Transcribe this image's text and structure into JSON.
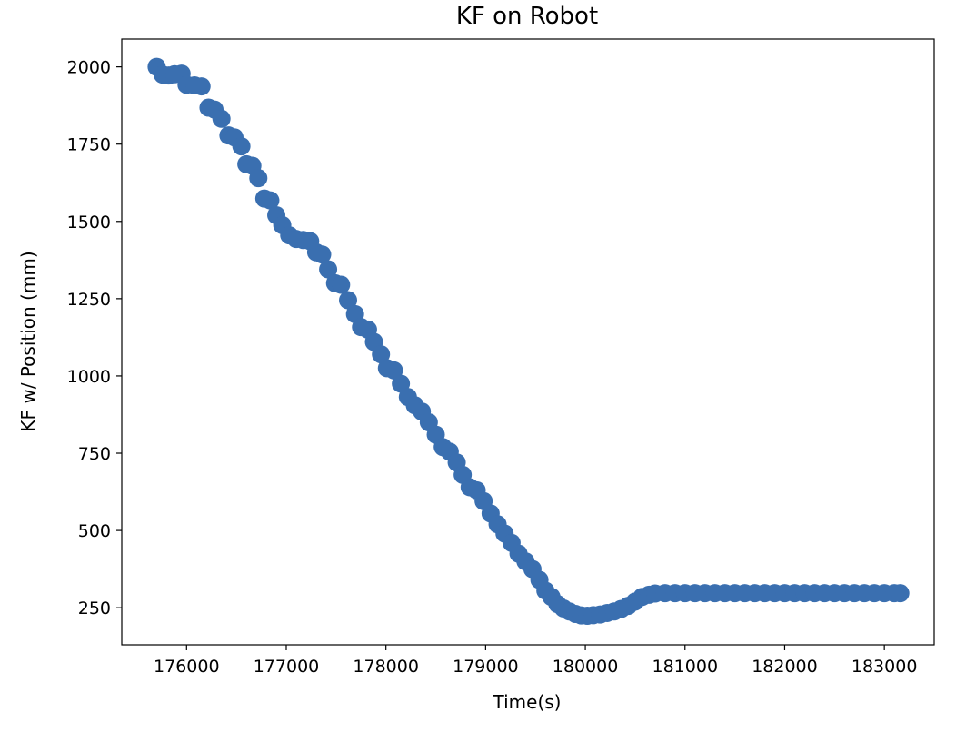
{
  "chart_data": {
    "type": "scatter",
    "title": "KF on Robot",
    "xlabel": "Time(s)",
    "ylabel": "KF w/ Position (mm)",
    "xlim": [
      175350,
      183500
    ],
    "ylim": [
      130,
      2090
    ],
    "x_ticks": [
      176000,
      177000,
      178000,
      179000,
      180000,
      181000,
      182000,
      183000
    ],
    "y_ticks": [
      250,
      500,
      750,
      1000,
      1250,
      1500,
      1750,
      2000
    ],
    "grid": false,
    "marker_color": "#3a6fb0",
    "series": [
      {
        "points": [
          [
            175700,
            2000
          ],
          [
            175760,
            1975
          ],
          [
            175820,
            1972
          ],
          [
            175880,
            1976
          ],
          [
            175950,
            1978
          ],
          [
            176000,
            1942
          ],
          [
            176080,
            1940
          ],
          [
            176150,
            1937
          ],
          [
            176220,
            1868
          ],
          [
            176280,
            1862
          ],
          [
            176350,
            1832
          ],
          [
            176420,
            1778
          ],
          [
            176480,
            1772
          ],
          [
            176550,
            1743
          ],
          [
            176600,
            1685
          ],
          [
            176660,
            1680
          ],
          [
            176720,
            1640
          ],
          [
            176780,
            1574
          ],
          [
            176840,
            1568
          ],
          [
            176900,
            1520
          ],
          [
            176960,
            1488
          ],
          [
            177030,
            1455
          ],
          [
            177100,
            1443
          ],
          [
            177170,
            1440
          ],
          [
            177240,
            1436
          ],
          [
            177300,
            1400
          ],
          [
            177360,
            1393
          ],
          [
            177420,
            1345
          ],
          [
            177490,
            1300
          ],
          [
            177550,
            1295
          ],
          [
            177620,
            1245
          ],
          [
            177690,
            1200
          ],
          [
            177750,
            1158
          ],
          [
            177820,
            1150
          ],
          [
            177880,
            1110
          ],
          [
            177950,
            1070
          ],
          [
            178010,
            1025
          ],
          [
            178080,
            1018
          ],
          [
            178150,
            975
          ],
          [
            178220,
            932
          ],
          [
            178290,
            905
          ],
          [
            178360,
            885
          ],
          [
            178430,
            850
          ],
          [
            178500,
            810
          ],
          [
            178570,
            770
          ],
          [
            178640,
            755
          ],
          [
            178710,
            720
          ],
          [
            178770,
            680
          ],
          [
            178840,
            640
          ],
          [
            178910,
            630
          ],
          [
            178980,
            595
          ],
          [
            179050,
            555
          ],
          [
            179120,
            520
          ],
          [
            179190,
            490
          ],
          [
            179260,
            460
          ],
          [
            179330,
            425
          ],
          [
            179400,
            400
          ],
          [
            179470,
            375
          ],
          [
            179540,
            340
          ],
          [
            179600,
            305
          ],
          [
            179660,
            285
          ],
          [
            179720,
            262
          ],
          [
            179780,
            248
          ],
          [
            179840,
            238
          ],
          [
            179900,
            230
          ],
          [
            179960,
            225
          ],
          [
            180020,
            224
          ],
          [
            180080,
            226
          ],
          [
            180150,
            228
          ],
          [
            180220,
            233
          ],
          [
            180290,
            238
          ],
          [
            180360,
            246
          ],
          [
            180430,
            256
          ],
          [
            180500,
            270
          ],
          [
            180570,
            285
          ],
          [
            180640,
            292
          ],
          [
            180700,
            296
          ],
          [
            180800,
            297
          ],
          [
            180900,
            297
          ],
          [
            181000,
            297
          ],
          [
            181100,
            297
          ],
          [
            181200,
            297
          ],
          [
            181300,
            297
          ],
          [
            181400,
            297
          ],
          [
            181500,
            297
          ],
          [
            181600,
            297
          ],
          [
            181700,
            297
          ],
          [
            181800,
            297
          ],
          [
            181900,
            297
          ],
          [
            182000,
            297
          ],
          [
            182100,
            297
          ],
          [
            182200,
            297
          ],
          [
            182300,
            297
          ],
          [
            182400,
            297
          ],
          [
            182500,
            297
          ],
          [
            182600,
            297
          ],
          [
            182700,
            297
          ],
          [
            182800,
            297
          ],
          [
            182900,
            297
          ],
          [
            183000,
            297
          ],
          [
            183100,
            297
          ],
          [
            183160,
            297
          ]
        ]
      }
    ]
  }
}
